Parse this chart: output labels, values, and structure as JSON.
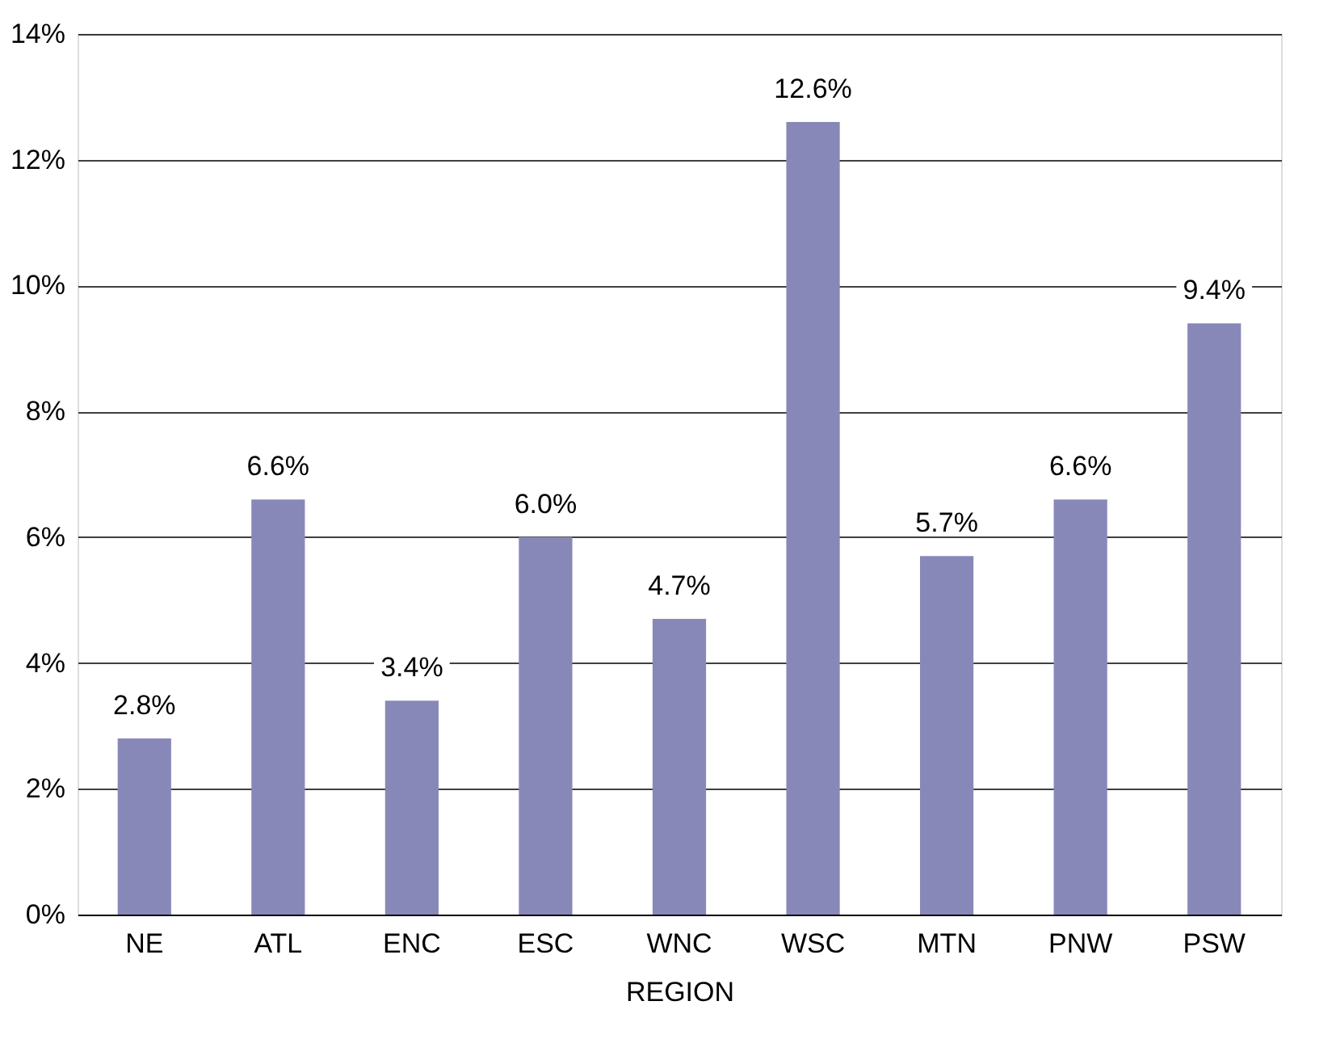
{
  "chart_data": {
    "type": "bar",
    "xlabel": "REGION",
    "categories": [
      "NE",
      "ATL",
      "ENC",
      "ESC",
      "WNC",
      "WSC",
      "MTN",
      "PNW",
      "PSW"
    ],
    "values": [
      2.8,
      6.6,
      3.4,
      6.0,
      4.7,
      12.6,
      5.7,
      6.6,
      9.4
    ],
    "value_labels": [
      "2.8%",
      "6.6%",
      "3.4%",
      "6.0%",
      "4.7%",
      "12.6%",
      "5.7%",
      "6.6%",
      "9.4%"
    ],
    "color": "#8888b8",
    "ylim": [
      0,
      14
    ],
    "yticks": [
      {
        "value": 0,
        "label": "0%"
      },
      {
        "value": 2,
        "label": "2%"
      },
      {
        "value": 4,
        "label": "4%"
      },
      {
        "value": 6,
        "label": "6%"
      },
      {
        "value": 8,
        "label": "8%"
      },
      {
        "value": 10,
        "label": "10%"
      },
      {
        "value": 12,
        "label": "12%"
      },
      {
        "value": 14,
        "label": "14%"
      }
    ],
    "grid": "y"
  }
}
